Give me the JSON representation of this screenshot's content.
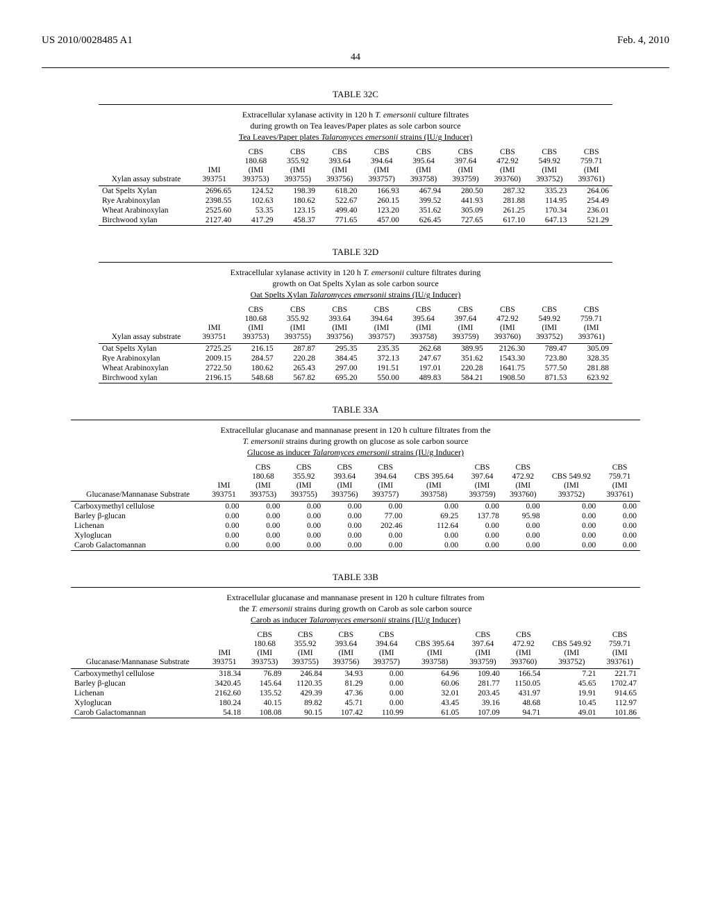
{
  "header": {
    "publication": "US 2010/0028485 A1",
    "date": "Feb. 4, 2010",
    "page_number": "44"
  },
  "tables": [
    {
      "id": "t32c",
      "label": "TABLE 32C",
      "wide": false,
      "caption_lines": [
        {
          "plain": "Extracellular xylanase activity in 120 h ",
          "italic": "T. emersonii",
          "after": " culture filtrates"
        },
        {
          "plain": "during growth on Tea leaves/Paper plates as sole carbon source"
        },
        {
          "underline_before": "Tea Leaves/Paper plates ",
          "underline_italic": "Talaromyces emersonii",
          "underline_after": " strains (IU/g Inducer)"
        }
      ],
      "row_header_label": "Xylan assay substrate",
      "columns": [
        [
          "IMI",
          "393751"
        ],
        [
          "CBS",
          "180.68",
          "(IMI",
          "393753)"
        ],
        [
          "CBS",
          "355.92",
          "(IMI",
          "393755)"
        ],
        [
          "CBS",
          "393.64",
          "(IMI",
          "393756)"
        ],
        [
          "CBS",
          "394.64",
          "(IMI",
          "393757)"
        ],
        [
          "CBS",
          "395.64",
          "(IMI",
          "393758)"
        ],
        [
          "CBS",
          "397.64",
          "(IMI",
          "393759)"
        ],
        [
          "CBS",
          "472.92",
          "(IMI",
          "393760)"
        ],
        [
          "CBS",
          "549.92",
          "(IMI",
          "393752)"
        ],
        [
          "CBS",
          "759.71",
          "(IMI",
          "393761)"
        ]
      ],
      "rows": [
        {
          "label": "Oat Spelts Xylan",
          "v": [
            "2696.65",
            "124.52",
            "198.39",
            "618.20",
            "166.93",
            "467.94",
            "280.50",
            "287.32",
            "335.23",
            "264.06"
          ]
        },
        {
          "label": "Rye Arabinoxylan",
          "v": [
            "2398.55",
            "102.63",
            "180.62",
            "522.67",
            "260.15",
            "399.52",
            "441.93",
            "281.88",
            "114.95",
            "254.49"
          ]
        },
        {
          "label": "Wheat Arabinoxylan",
          "v": [
            "2525.60",
            "53.35",
            "123.15",
            "499.40",
            "123.20",
            "351.62",
            "305.09",
            "261.25",
            "170.34",
            "236.01"
          ]
        },
        {
          "label": "Birchwood xylan",
          "v": [
            "2127.40",
            "417.29",
            "458.37",
            "771.65",
            "457.00",
            "626.45",
            "727.65",
            "617.10",
            "647.13",
            "521.29"
          ]
        }
      ]
    },
    {
      "id": "t32d",
      "label": "TABLE 32D",
      "wide": false,
      "caption_lines": [
        {
          "plain": "Extracellular xylanase activity in 120 h ",
          "italic": "T. emersonii",
          "after": " culture filtrates during"
        },
        {
          "plain": "growth on Oat Spelts Xylan as sole carbon source"
        },
        {
          "underline_before": "Oat Spelts Xylan ",
          "underline_italic": "Talaromyces emersonii",
          "underline_after": " strains (IU/g Inducer)"
        }
      ],
      "row_header_label": "Xylan assay substrate",
      "columns": [
        [
          "IMI",
          "393751"
        ],
        [
          "CBS",
          "180.68",
          "(IMI",
          "393753)"
        ],
        [
          "CBS",
          "355.92",
          "(IMI",
          "393755)"
        ],
        [
          "CBS",
          "393.64",
          "(IMI",
          "393756)"
        ],
        [
          "CBS",
          "394.64",
          "(IMI",
          "393757)"
        ],
        [
          "CBS",
          "395.64",
          "(IMI",
          "393758)"
        ],
        [
          "CBS",
          "397.64",
          "(IMI",
          "393759)"
        ],
        [
          "CBS",
          "472.92",
          "(IMI",
          "393760)"
        ],
        [
          "CBS",
          "549.92",
          "(IMI",
          "393752)"
        ],
        [
          "CBS",
          "759.71",
          "(IMI",
          "393761)"
        ]
      ],
      "rows": [
        {
          "label": "Oat Spelts Xylan",
          "v": [
            "2725.25",
            "216.15",
            "287.87",
            "295.35",
            "235.35",
            "262.68",
            "389.95",
            "2126.30",
            "789.47",
            "305.09"
          ]
        },
        {
          "label": "Rye Arabinoxylan",
          "v": [
            "2009.15",
            "284.57",
            "220.28",
            "384.45",
            "372.13",
            "247.67",
            "351.62",
            "1543.30",
            "723.80",
            "328.35"
          ]
        },
        {
          "label": "Wheat Arabinoxylan",
          "v": [
            "2722.50",
            "180.62",
            "265.43",
            "297.00",
            "191.51",
            "197.01",
            "220.28",
            "1641.75",
            "577.50",
            "281.88"
          ]
        },
        {
          "label": "Birchwood xylan",
          "v": [
            "2196.15",
            "548.68",
            "567.82",
            "695.20",
            "550.00",
            "489.83",
            "584.21",
            "1908.50",
            "871.53",
            "623.92"
          ]
        }
      ]
    },
    {
      "id": "t33a",
      "label": "TABLE 33A",
      "wide": true,
      "caption_lines": [
        {
          "plain": "Extracellular glucanase and mannanase present in 120 h culture filtrates from the"
        },
        {
          "italic_before": "T. emersonii",
          "plain": " strains during growth on glucose as sole carbon source"
        },
        {
          "underline_before": "Glucose as inducer ",
          "underline_italic": "Talaromyces emersonii",
          "underline_after": " strains (IU/g Inducer)"
        }
      ],
      "row_header_label": "Glucanase/Mannanase Substrate",
      "columns": [
        [
          "IMI",
          "393751"
        ],
        [
          "CBS",
          "180.68",
          "(IMI",
          "393753)"
        ],
        [
          "CBS",
          "355.92",
          "(IMI",
          "393755)"
        ],
        [
          "CBS",
          "393.64",
          "(IMI",
          "393756)"
        ],
        [
          "CBS",
          "394.64",
          "(IMI",
          "393757)"
        ],
        [
          "CBS 395.64",
          "(IMI",
          "393758)"
        ],
        [
          "CBS",
          "397.64",
          "(IMI",
          "393759)"
        ],
        [
          "CBS",
          "472.92",
          "(IMI",
          "393760)"
        ],
        [
          "CBS 549.92",
          "(IMI",
          "393752)"
        ],
        [
          "CBS",
          "759.71",
          "(IMI",
          "393761)"
        ]
      ],
      "rows": [
        {
          "label": "Carboxymethyl cellulose",
          "v": [
            "0.00",
            "0.00",
            "0.00",
            "0.00",
            "0.00",
            "0.00",
            "0.00",
            "0.00",
            "0.00",
            "0.00"
          ]
        },
        {
          "label": "Barley β-glucan",
          "v": [
            "0.00",
            "0.00",
            "0.00",
            "0.00",
            "77.00",
            "69.25",
            "137.78",
            "95.98",
            "0.00",
            "0.00"
          ]
        },
        {
          "label": "Lichenan",
          "v": [
            "0.00",
            "0.00",
            "0.00",
            "0.00",
            "202.46",
            "112.64",
            "0.00",
            "0.00",
            "0.00",
            "0.00"
          ]
        },
        {
          "label": "Xyloglucan",
          "v": [
            "0.00",
            "0.00",
            "0.00",
            "0.00",
            "0.00",
            "0.00",
            "0.00",
            "0.00",
            "0.00",
            "0.00"
          ]
        },
        {
          "label": "Carob Galactomannan",
          "v": [
            "0.00",
            "0.00",
            "0.00",
            "0.00",
            "0.00",
            "0.00",
            "0.00",
            "0.00",
            "0.00",
            "0.00"
          ]
        }
      ]
    },
    {
      "id": "t33b",
      "label": "TABLE 33B",
      "wide": true,
      "caption_lines": [
        {
          "plain": "Extracellular glucanase and mannanase present in 120 h culture filtrates from"
        },
        {
          "plain": "the ",
          "italic": "T. emersonii",
          "after": " strains during growth on Carob as sole carbon source"
        },
        {
          "underline_before": "Carob as inducer ",
          "underline_italic": "Talaromyces emersonii",
          "underline_after": " strains (IU/g Inducer)"
        }
      ],
      "row_header_label": "Glucanase/Mannanase Substrate",
      "columns": [
        [
          "IMI",
          "393751"
        ],
        [
          "CBS",
          "180.68",
          "(IMI",
          "393753)"
        ],
        [
          "CBS",
          "355.92",
          "(IMI",
          "393755)"
        ],
        [
          "CBS",
          "393.64",
          "(IMI",
          "393756)"
        ],
        [
          "CBS",
          "394.64",
          "(IMI",
          "393757)"
        ],
        [
          "CBS 395.64",
          "(IMI",
          "393758)"
        ],
        [
          "CBS",
          "397.64",
          "(IMI",
          "393759)"
        ],
        [
          "CBS",
          "472.92",
          "(IMI",
          "393760)"
        ],
        [
          "CBS 549.92",
          "(IMI",
          "393752)"
        ],
        [
          "CBS",
          "759.71",
          "(IMI",
          "393761)"
        ]
      ],
      "rows": [
        {
          "label": "Carboxymethyl cellulose",
          "v": [
            "318.34",
            "76.89",
            "246.84",
            "34.93",
            "0.00",
            "64.96",
            "109.40",
            "166.54",
            "7.21",
            "221.71"
          ]
        },
        {
          "label": "Barley β-glucan",
          "v": [
            "3420.45",
            "145.64",
            "1120.35",
            "81.29",
            "0.00",
            "60.06",
            "281.77",
            "1150.05",
            "45.65",
            "1702.47"
          ]
        },
        {
          "label": "Lichenan",
          "v": [
            "2162.60",
            "135.52",
            "429.39",
            "47.36",
            "0.00",
            "32.01",
            "203.45",
            "431.97",
            "19.91",
            "914.65"
          ]
        },
        {
          "label": "Xyloglucan",
          "v": [
            "180.24",
            "40.15",
            "89.82",
            "45.71",
            "0.00",
            "43.45",
            "39.16",
            "48.68",
            "10.45",
            "112.97"
          ]
        },
        {
          "label": "Carob Galactomannan",
          "v": [
            "54.18",
            "108.08",
            "90.15",
            "107.42",
            "110.99",
            "61.05",
            "107.09",
            "94.71",
            "49.01",
            "101.86"
          ]
        }
      ]
    }
  ]
}
